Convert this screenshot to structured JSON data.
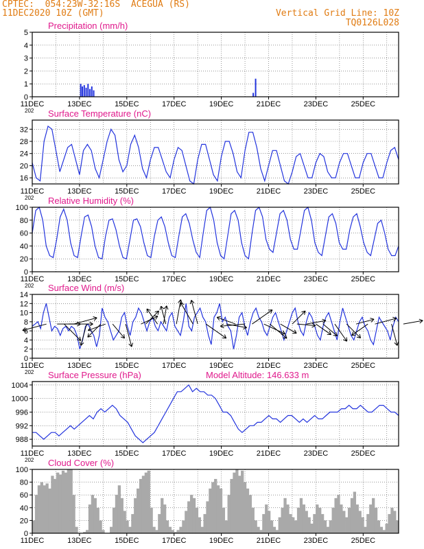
{
  "header": {
    "source_line": "CPTEC:  054:23W-32:16S  ACEGUA (RS)",
    "date_line": "11DEC2020 10Z (GMT)",
    "grid_line": "Vertical Grid Line: 10Z",
    "code": "TQ0126L028"
  },
  "colors": {
    "header": "#e07b12",
    "title": "#e0198c",
    "series": "#2233dd",
    "cloud": "#a9a9a9",
    "grid": "#555555"
  },
  "x_axis": {
    "tick_labels": [
      "11DEC",
      "13DEC",
      "15DEC",
      "17DEC",
      "19DEC",
      "21DEC",
      "23DEC",
      "25DEC"
    ],
    "truncated_year": "202",
    "range_days": [
      0,
      15.5
    ]
  },
  "chart_data": [
    {
      "type": "bar",
      "title": "Precipitation (mm/h)",
      "ylim": [
        0,
        5
      ],
      "yticks": [
        "0",
        "1",
        "2",
        "3",
        "4",
        "5"
      ],
      "series": [
        {
          "x": [
            2.05,
            2.12,
            2.2,
            2.28,
            2.36,
            2.44,
            2.52,
            2.6,
            9.35,
            9.45
          ],
          "values": [
            1.0,
            0.8,
            0.9,
            0.7,
            1.0,
            0.6,
            0.8,
            0.5,
            0.3,
            1.4
          ]
        }
      ]
    },
    {
      "type": "line",
      "title": "Surface Temperature (nC)",
      "ylim": [
        14,
        35
      ],
      "yticks": [
        "16",
        "20",
        "24",
        "28",
        "32"
      ],
      "series": [
        {
          "values": [
            21,
            16,
            15,
            28,
            33,
            32,
            25,
            18,
            22,
            26,
            27,
            22,
            17,
            25,
            27,
            25,
            19,
            16,
            22,
            28,
            32,
            30,
            22,
            18,
            20,
            27,
            30,
            26,
            19,
            16,
            22,
            26,
            26,
            22,
            18,
            16,
            22,
            26,
            25,
            20,
            15,
            14,
            22,
            27,
            27,
            22,
            17,
            15,
            23,
            28,
            28,
            24,
            18,
            16,
            25,
            31,
            31,
            26,
            19,
            15,
            20,
            25,
            25,
            20,
            15,
            14,
            18,
            23,
            24,
            20,
            16,
            16,
            21,
            24,
            23,
            18,
            16,
            16,
            21,
            24,
            24,
            20,
            16,
            16,
            21,
            24,
            24,
            20,
            16,
            16,
            21,
            25,
            26,
            22
          ]
        }
      ]
    },
    {
      "type": "line",
      "title": "Relative Humidity (%)",
      "ylim": [
        0,
        100
      ],
      "yticks": [
        "0",
        "20",
        "40",
        "60",
        "80",
        "100"
      ],
      "series": [
        {
          "values": [
            60,
            95,
            100,
            80,
            40,
            25,
            22,
            50,
            85,
            97,
            80,
            45,
            25,
            22,
            55,
            85,
            88,
            70,
            40,
            22,
            20,
            55,
            80,
            82,
            65,
            40,
            22,
            20,
            50,
            80,
            82,
            70,
            45,
            25,
            22,
            55,
            80,
            85,
            70,
            45,
            25,
            22,
            55,
            85,
            90,
            75,
            50,
            30,
            22,
            60,
            95,
            100,
            80,
            45,
            25,
            20,
            55,
            90,
            95,
            80,
            45,
            25,
            20,
            60,
            95,
            100,
            85,
            50,
            35,
            30,
            60,
            90,
            95,
            80,
            50,
            35,
            35,
            65,
            95,
            100,
            80,
            45,
            30,
            25,
            55,
            85,
            90,
            75,
            45,
            35,
            35,
            65,
            85,
            90,
            70,
            45,
            30,
            25,
            50,
            75,
            80,
            60,
            35,
            25,
            25,
            40
          ]
        }
      ]
    },
    {
      "type": "line",
      "title": "Surface Wind (m/s)",
      "ylim": [
        0,
        14
      ],
      "yticks": [
        "0",
        "2",
        "4",
        "6",
        "8",
        "10",
        "12",
        "14"
      ],
      "series": [
        {
          "values": [
            7,
            7.5,
            8,
            6.5,
            10,
            12,
            9,
            6,
            7,
            6.5,
            5,
            6.5,
            7,
            6,
            7,
            6.5,
            5,
            2,
            4,
            7,
            7.5,
            6,
            5,
            2.5,
            5,
            11,
            9,
            8,
            6,
            4,
            5,
            6,
            9,
            10,
            7,
            5,
            8,
            9,
            11,
            10,
            8,
            6,
            8,
            9,
            7,
            6,
            8,
            7,
            6,
            9,
            10,
            7,
            6,
            5,
            8,
            12,
            7,
            6,
            9,
            10,
            11,
            9,
            8,
            5,
            3,
            9,
            10,
            12,
            8,
            9,
            7,
            6,
            2,
            5,
            9,
            10,
            7,
            5,
            8,
            10,
            11,
            9,
            8,
            6,
            5,
            7,
            9,
            10,
            8,
            6,
            4,
            6,
            8,
            10,
            11,
            8,
            6,
            5,
            8,
            10,
            9,
            7,
            5,
            4,
            7,
            9,
            10,
            8,
            6,
            4,
            8,
            11,
            9,
            7,
            5,
            4,
            6,
            8,
            9,
            7,
            6,
            4,
            3,
            6,
            9,
            8,
            7,
            6,
            4,
            7,
            9,
            8
          ]
        }
      ],
      "arrows": [
        [
          0.6,
          2.0,
          255
        ],
        [
          1.05,
          1.9,
          90
        ],
        [
          1.35,
          1.9,
          135
        ],
        [
          1.55,
          1.95,
          90
        ],
        [
          1.75,
          1.95,
          75
        ],
        [
          2.3,
          1.8,
          195
        ],
        [
          2.9,
          1.5,
          225
        ],
        [
          3.1,
          1.5,
          250
        ],
        [
          3.4,
          1.5,
          140
        ],
        [
          3.95,
          1.9,
          165
        ],
        [
          4.6,
          1.5,
          65
        ],
        [
          4.8,
          1.5,
          45
        ],
        [
          5.3,
          1.5,
          325
        ],
        [
          5.55,
          1.5,
          10
        ],
        [
          5.65,
          1.5,
          345
        ],
        [
          6.1,
          2.0,
          10
        ],
        [
          6.8,
          2.0,
          330
        ],
        [
          7.0,
          2.0,
          345
        ],
        [
          7.35,
          2.0,
          125
        ],
        [
          8.2,
          1.7,
          100
        ],
        [
          8.6,
          1.6,
          290
        ],
        [
          9.0,
          2.0,
          265
        ],
        [
          9.3,
          2.0,
          55
        ],
        [
          9.8,
          1.9,
          115
        ],
        [
          10.05,
          1.8,
          130
        ],
        [
          10.5,
          1.5,
          120
        ],
        [
          11.0,
          1.5,
          45
        ],
        [
          11.2,
          1.5,
          95
        ],
        [
          11.6,
          1.6,
          80
        ],
        [
          12.0,
          1.5,
          125
        ],
        [
          12.3,
          1.5,
          130
        ],
        [
          12.8,
          1.7,
          145
        ],
        [
          13.3,
          1.6,
          135
        ],
        [
          13.7,
          1.5,
          75
        ],
        [
          14.2,
          1.6,
          235
        ],
        [
          14.5,
          1.8,
          75
        ],
        [
          15.2,
          1.8,
          165
        ],
        [
          15.7,
          1.6,
          80
        ]
      ]
    },
    {
      "type": "line",
      "title": "Surface Pressure (hPa)",
      "annotation": "Model Altitude: 146.633 m",
      "ylim": [
        986,
        1005
      ],
      "yticks": [
        "988",
        "992",
        "996",
        "1000",
        "1004"
      ],
      "series": [
        {
          "values": [
            990,
            990,
            989,
            988,
            989,
            990,
            990,
            989,
            990,
            991,
            992,
            991,
            992,
            993,
            994,
            995,
            994,
            996,
            997,
            996,
            997,
            998,
            997,
            995,
            994,
            993,
            991,
            989,
            988,
            987,
            988,
            989,
            990,
            992,
            994,
            996,
            998,
            1000,
            1002,
            1002,
            1003,
            1004,
            1002,
            1003,
            1002,
            1002,
            1001,
            1001,
            1000,
            998,
            996,
            996,
            995,
            993,
            991,
            990,
            991,
            992,
            992,
            993,
            993,
            994,
            995,
            994,
            994,
            993,
            994,
            995,
            995,
            994,
            993,
            994,
            993,
            994,
            995,
            994,
            994,
            995,
            996,
            996,
            996,
            997,
            997,
            998,
            997,
            997,
            998,
            997,
            996,
            996,
            997,
            998,
            998,
            997,
            996,
            996,
            995
          ]
        }
      ]
    },
    {
      "type": "bar",
      "title": "Cloud Cover (%)",
      "ylim": [
        0,
        100
      ],
      "yticks": [
        "0",
        "20",
        "40",
        "60",
        "80",
        "100"
      ],
      "series": [
        {
          "values": [
            20,
            60,
            75,
            80,
            75,
            78,
            70,
            90,
            85,
            95,
            92,
            98,
            95,
            100,
            100,
            60,
            10,
            0,
            0,
            2,
            5,
            45,
            60,
            55,
            40,
            20,
            5,
            0,
            0,
            10,
            40,
            60,
            75,
            55,
            35,
            20,
            10,
            30,
            55,
            70,
            85,
            90,
            95,
            98,
            40,
            10,
            5,
            30,
            55,
            45,
            20,
            10,
            5,
            2,
            5,
            10,
            20,
            35,
            50,
            60,
            55,
            40,
            25,
            10,
            30,
            50,
            70,
            80,
            85,
            75,
            70,
            40,
            20,
            60,
            85,
            95,
            100,
            90,
            98,
            80,
            70,
            60,
            40,
            20,
            10,
            5,
            30,
            45,
            35,
            20,
            10,
            5,
            25,
            40,
            55,
            45,
            30,
            25,
            20,
            40,
            55,
            45,
            35,
            25,
            15,
            30,
            45,
            40,
            30,
            20,
            10,
            20,
            40,
            55,
            60,
            45,
            35,
            25,
            40,
            55,
            65,
            45,
            35,
            25,
            10,
            30,
            45,
            55,
            40,
            20,
            10,
            5,
            15,
            30,
            40,
            35,
            20
          ]
        }
      ]
    }
  ]
}
